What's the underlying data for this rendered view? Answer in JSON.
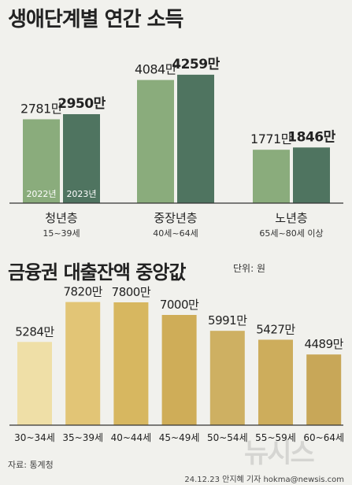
{
  "title_top": "생애단계별 연간 소득",
  "title_bottom": "금융권 대출잔액 중앙값",
  "unit_note": "단위: 원",
  "source": "자료: 통계청",
  "credit": "24.12.23 안지혜 기자 hokma@newsis.com",
  "watermark": "뉴시스",
  "colors": {
    "income_2022": "#8aac7c",
    "income_2023": "#4f7460",
    "loan": [
      "#efdfa7",
      "#e2c576",
      "#d7b760",
      "#cfad58",
      "#ceb062",
      "#cdad5c",
      "#c8a758"
    ]
  },
  "chart_data": [
    {
      "type": "bar",
      "title": "생애단계별 연간 소득",
      "categories": [
        "청년층",
        "중장년층",
        "노년층"
      ],
      "category_subtitles": [
        "15~39세",
        "40세~64세",
        "65세~80세 이상"
      ],
      "series": [
        {
          "name": "2022년",
          "values": [
            2781,
            4084,
            1771
          ]
        },
        {
          "name": "2023년",
          "values": [
            2950,
            4259,
            1846
          ]
        }
      ],
      "value_labels": [
        [
          "2781만",
          "4084만",
          "1771만"
        ],
        [
          "2950만",
          "4259만",
          "1846만"
        ]
      ],
      "value_unit": "만원",
      "ylim": [
        0,
        4700
      ],
      "grid": false,
      "legend": "inside first pair of bars"
    },
    {
      "type": "bar",
      "title": "금융권 대출잔액 중앙값",
      "categories": [
        "30~34세",
        "35~39세",
        "40~44세",
        "45~49세",
        "50~54세",
        "55~59세",
        "60~64세"
      ],
      "values": [
        5284,
        7820,
        7800,
        7000,
        5991,
        5427,
        4489
      ],
      "value_labels": [
        "5284만",
        "7820만",
        "7800만",
        "7000만",
        "5991만",
        "5427만",
        "4489만"
      ],
      "value_unit": "만원",
      "ylim": [
        0,
        9000
      ],
      "grid": false
    }
  ]
}
